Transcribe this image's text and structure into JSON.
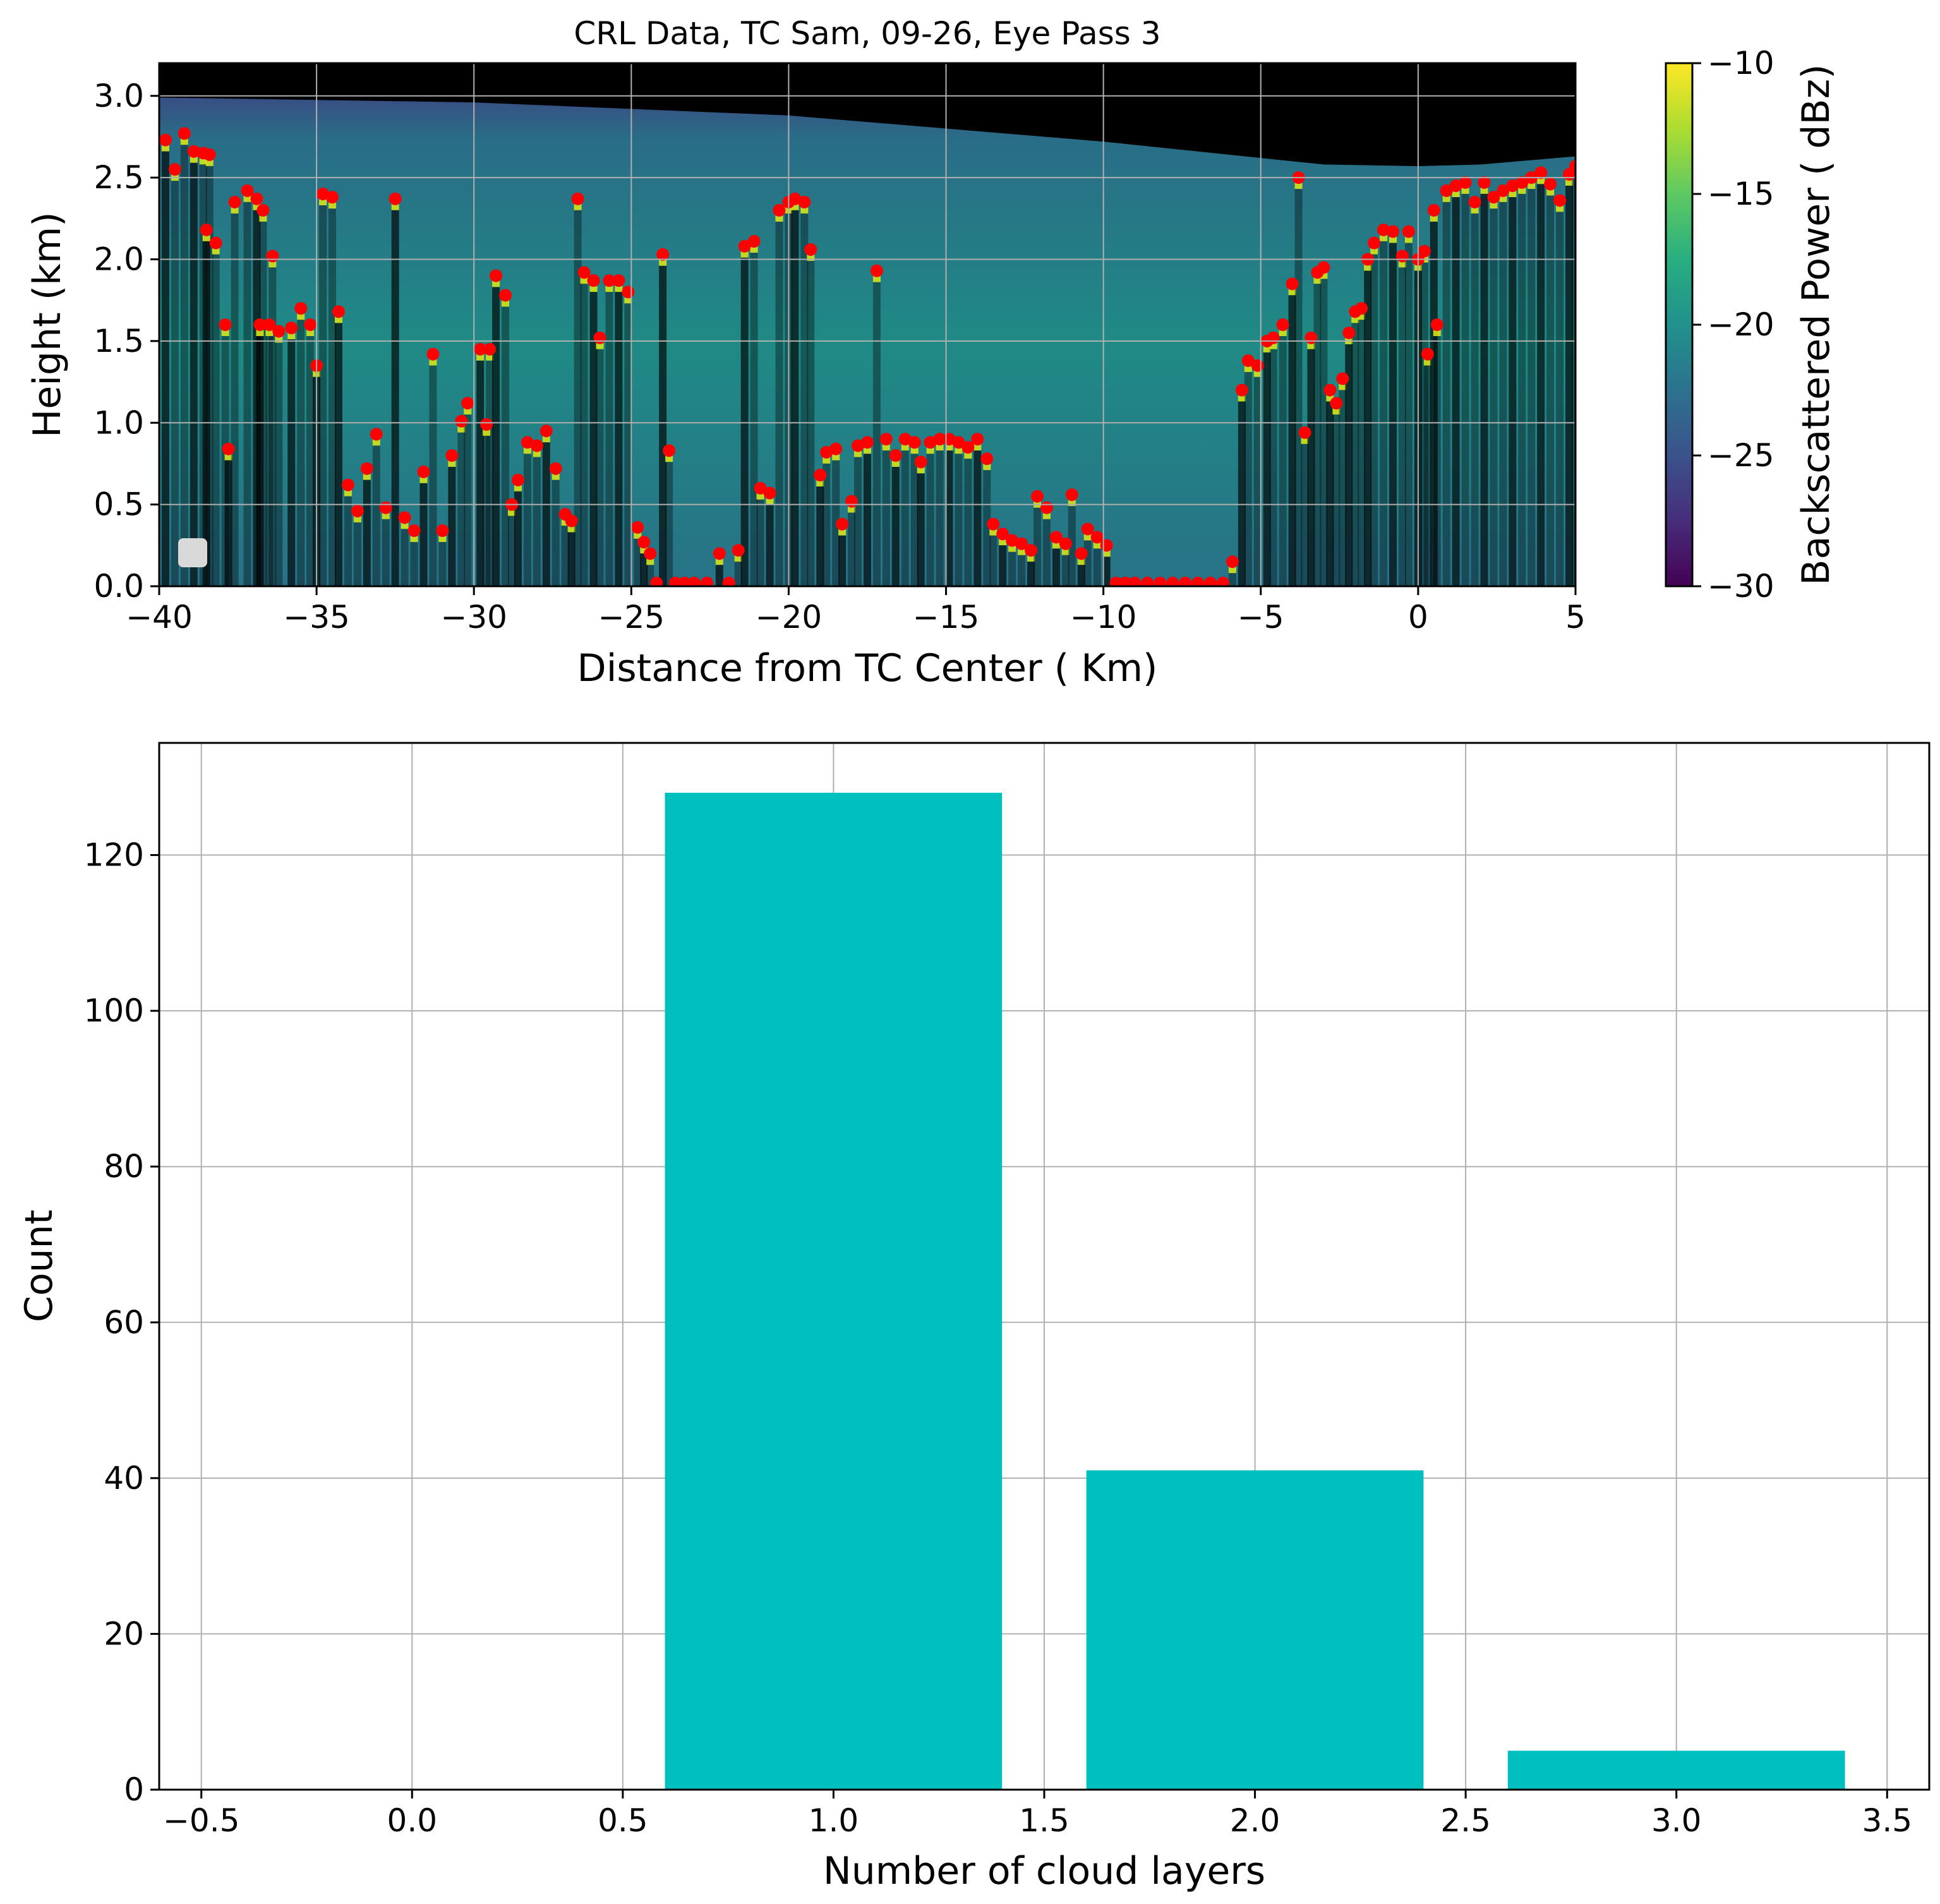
{
  "chart_data": [
    {
      "type": "heatmap",
      "title": "CRL Data, TC Sam, 09-26, Eye Pass 3",
      "xlabel": "Distance from TC Center ( Km)",
      "ylabel": "Height (km)",
      "xlim": [
        -40,
        5
      ],
      "ylim": [
        0,
        3.2
      ],
      "xticks": [
        -40,
        -35,
        -30,
        -25,
        -20,
        -15,
        -10,
        -5,
        0,
        5
      ],
      "yticks": [
        0.0,
        0.5,
        1.0,
        1.5,
        2.0,
        2.5,
        3.0
      ],
      "xtick_labels": [
        "−40",
        "−35",
        "−30",
        "−25",
        "−20",
        "−15",
        "−10",
        "−5",
        "0",
        "5"
      ],
      "ytick_labels": [
        "0.0",
        "0.5",
        "1.0",
        "1.5",
        "2.0",
        "2.5",
        "3.0"
      ],
      "grid": true,
      "colorbar": {
        "label": "Backscattered Power ( dBz)",
        "range": [
          -30,
          -10
        ],
        "ticks": [
          -30,
          -25,
          -20,
          -15,
          -10
        ],
        "tick_labels": [
          "−30",
          "−25",
          "−20",
          "−15",
          "−10"
        ],
        "colormap": "viridis"
      },
      "top_height_profile": [
        [
          -40,
          2.99
        ],
        [
          -30,
          2.96
        ],
        [
          -20,
          2.88
        ],
        [
          -15,
          2.8
        ],
        [
          -10,
          2.72
        ],
        [
          -5,
          2.62
        ],
        [
          -3,
          2.58
        ],
        [
          0,
          2.57
        ],
        [
          2,
          2.58
        ],
        [
          5,
          2.63
        ]
      ],
      "layer_points": {
        "color": "#ff0000",
        "points": [
          [
            -39.8,
            2.73
          ],
          [
            -39.5,
            2.55
          ],
          [
            -39.2,
            2.77
          ],
          [
            -38.9,
            2.66
          ],
          [
            -38.6,
            2.65
          ],
          [
            -38.4,
            2.64
          ],
          [
            -38.5,
            2.18
          ],
          [
            -38.2,
            2.1
          ],
          [
            -37.9,
            1.6
          ],
          [
            -37.8,
            0.84
          ],
          [
            -37.6,
            2.35
          ],
          [
            -37.2,
            2.42
          ],
          [
            -36.9,
            2.37
          ],
          [
            -36.7,
            2.3
          ],
          [
            -36.4,
            2.02
          ],
          [
            -36.8,
            1.6
          ],
          [
            -36.5,
            1.6
          ],
          [
            -36.2,
            1.56
          ],
          [
            -35.8,
            1.58
          ],
          [
            -35.5,
            1.7
          ],
          [
            -35.2,
            1.6
          ],
          [
            -35.0,
            1.35
          ],
          [
            -34.8,
            2.4
          ],
          [
            -34.5,
            2.38
          ],
          [
            -34.3,
            1.68
          ],
          [
            -34.0,
            0.62
          ],
          [
            -33.7,
            0.46
          ],
          [
            -33.4,
            0.72
          ],
          [
            -33.1,
            0.93
          ],
          [
            -32.8,
            0.48
          ],
          [
            -32.5,
            2.37
          ],
          [
            -32.2,
            0.42
          ],
          [
            -31.9,
            0.34
          ],
          [
            -31.6,
            0.7
          ],
          [
            -31.3,
            1.42
          ],
          [
            -31.0,
            0.34
          ],
          [
            -30.7,
            0.8
          ],
          [
            -30.4,
            1.01
          ],
          [
            -30.2,
            1.12
          ],
          [
            -29.8,
            1.45
          ],
          [
            -29.5,
            1.45
          ],
          [
            -29.6,
            0.99
          ],
          [
            -29.3,
            1.9
          ],
          [
            -29.0,
            1.78
          ],
          [
            -28.8,
            0.5
          ],
          [
            -28.6,
            0.65
          ],
          [
            -28.3,
            0.88
          ],
          [
            -28.0,
            0.86
          ],
          [
            -27.7,
            0.95
          ],
          [
            -27.4,
            0.72
          ],
          [
            -27.1,
            0.44
          ],
          [
            -26.9,
            0.4
          ],
          [
            -26.7,
            2.37
          ],
          [
            -26.5,
            1.92
          ],
          [
            -26.2,
            1.87
          ],
          [
            -26.0,
            1.52
          ],
          [
            -25.7,
            1.87
          ],
          [
            -25.4,
            1.87
          ],
          [
            -25.1,
            1.8
          ],
          [
            -24.8,
            0.36
          ],
          [
            -24.6,
            0.27
          ],
          [
            -24.4,
            0.2
          ],
          [
            -24.2,
            0.02
          ],
          [
            -24.0,
            2.03
          ],
          [
            -23.8,
            0.83
          ],
          [
            -23.6,
            0.02
          ],
          [
            -23.3,
            0.02
          ],
          [
            -23.0,
            0.02
          ],
          [
            -22.6,
            0.02
          ],
          [
            -22.2,
            0.2
          ],
          [
            -21.9,
            0.02
          ],
          [
            -21.6,
            0.22
          ],
          [
            -21.4,
            2.08
          ],
          [
            -21.1,
            2.11
          ],
          [
            -20.9,
            0.6
          ],
          [
            -20.6,
            0.57
          ],
          [
            -20.3,
            2.3
          ],
          [
            -20.0,
            2.35
          ],
          [
            -19.8,
            2.37
          ],
          [
            -19.5,
            2.35
          ],
          [
            -19.3,
            2.06
          ],
          [
            -19.0,
            0.68
          ],
          [
            -18.8,
            0.82
          ],
          [
            -18.5,
            0.84
          ],
          [
            -18.3,
            0.38
          ],
          [
            -18.0,
            0.52
          ],
          [
            -17.8,
            0.86
          ],
          [
            -17.5,
            0.88
          ],
          [
            -17.2,
            1.93
          ],
          [
            -16.9,
            0.9
          ],
          [
            -16.6,
            0.8
          ],
          [
            -16.3,
            0.9
          ],
          [
            -16.0,
            0.88
          ],
          [
            -15.8,
            0.76
          ],
          [
            -15.5,
            0.88
          ],
          [
            -15.2,
            0.9
          ],
          [
            -14.9,
            0.9
          ],
          [
            -14.6,
            0.88
          ],
          [
            -14.3,
            0.85
          ],
          [
            -14.0,
            0.9
          ],
          [
            -13.7,
            0.78
          ],
          [
            -13.5,
            0.38
          ],
          [
            -13.2,
            0.32
          ],
          [
            -12.9,
            0.28
          ],
          [
            -12.6,
            0.26
          ],
          [
            -12.3,
            0.22
          ],
          [
            -12.1,
            0.55
          ],
          [
            -11.8,
            0.48
          ],
          [
            -11.5,
            0.3
          ],
          [
            -11.2,
            0.26
          ],
          [
            -11.0,
            0.56
          ],
          [
            -10.7,
            0.2
          ],
          [
            -10.5,
            0.35
          ],
          [
            -10.2,
            0.3
          ],
          [
            -9.9,
            0.25
          ],
          [
            -9.6,
            0.02
          ],
          [
            -9.3,
            0.02
          ],
          [
            -9.0,
            0.02
          ],
          [
            -8.6,
            0.02
          ],
          [
            -8.2,
            0.02
          ],
          [
            -7.8,
            0.02
          ],
          [
            -7.4,
            0.02
          ],
          [
            -7.0,
            0.02
          ],
          [
            -6.6,
            0.02
          ],
          [
            -6.2,
            0.02
          ],
          [
            -5.9,
            0.15
          ],
          [
            -5.6,
            1.2
          ],
          [
            -5.4,
            1.38
          ],
          [
            -5.1,
            1.35
          ],
          [
            -4.8,
            1.5
          ],
          [
            -4.6,
            1.52
          ],
          [
            -4.3,
            1.6
          ],
          [
            -4.0,
            1.85
          ],
          [
            -3.8,
            2.5
          ],
          [
            -3.6,
            0.94
          ],
          [
            -3.4,
            1.52
          ],
          [
            -3.2,
            1.92
          ],
          [
            -3.0,
            1.95
          ],
          [
            -2.8,
            1.2
          ],
          [
            -2.6,
            1.12
          ],
          [
            -2.4,
            1.27
          ],
          [
            -2.2,
            1.55
          ],
          [
            -2.0,
            1.68
          ],
          [
            -1.8,
            1.7
          ],
          [
            -1.6,
            2.0
          ],
          [
            -1.4,
            2.1
          ],
          [
            -1.1,
            2.18
          ],
          [
            -0.8,
            2.17
          ],
          [
            -0.5,
            2.02
          ],
          [
            -0.3,
            2.17
          ],
          [
            0.0,
            2.0
          ],
          [
            0.2,
            2.05
          ],
          [
            0.3,
            1.42
          ],
          [
            0.5,
            2.3
          ],
          [
            0.6,
            1.6
          ],
          [
            0.9,
            2.42
          ],
          [
            1.2,
            2.45
          ],
          [
            1.5,
            2.47
          ],
          [
            1.8,
            2.35
          ],
          [
            2.1,
            2.47
          ],
          [
            2.4,
            2.38
          ],
          [
            2.7,
            2.42
          ],
          [
            3.0,
            2.45
          ],
          [
            3.3,
            2.47
          ],
          [
            3.6,
            2.5
          ],
          [
            3.9,
            2.53
          ],
          [
            4.2,
            2.46
          ],
          [
            4.5,
            2.36
          ],
          [
            4.8,
            2.52
          ],
          [
            5.0,
            2.57
          ]
        ]
      }
    },
    {
      "type": "bar",
      "xlabel": "Number of cloud layers",
      "ylabel": "Count",
      "categories": [
        1,
        2,
        3
      ],
      "values": [
        128,
        41,
        5
      ],
      "bar_width": 0.8,
      "xlim": [
        -0.6,
        3.6
      ],
      "ylim": [
        0,
        134.4
      ],
      "xticks": [
        -0.5,
        0.0,
        0.5,
        1.0,
        1.5,
        2.0,
        2.5,
        3.0,
        3.5
      ],
      "xtick_labels": [
        "−0.5",
        "0.0",
        "0.5",
        "1.0",
        "1.5",
        "2.0",
        "2.5",
        "3.0",
        "3.5"
      ],
      "yticks": [
        0,
        20,
        40,
        60,
        80,
        100,
        120
      ],
      "ytick_labels": [
        "0",
        "20",
        "40",
        "60",
        "80",
        "100",
        "120"
      ],
      "grid": true,
      "color": "#00bfbf"
    }
  ]
}
